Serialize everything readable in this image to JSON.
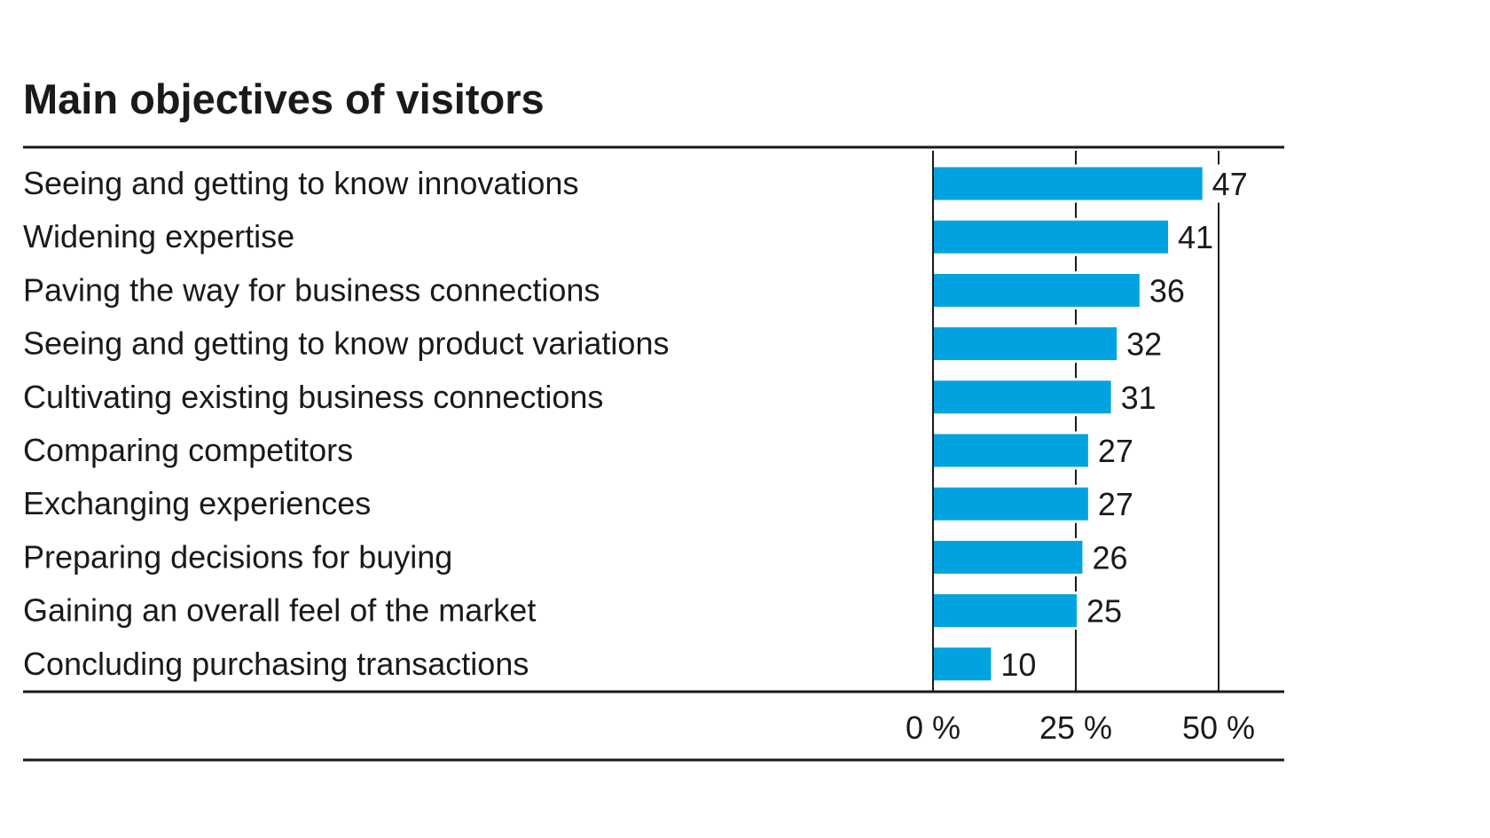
{
  "chart_data": {
    "type": "bar",
    "orientation": "horizontal",
    "title": "Main objectives of visitors",
    "categories": [
      "Seeing and getting to know innovations",
      "Widening expertise",
      "Paving the way for business connections",
      "Seeing and getting to know product variations",
      "Cultivating existing business connections",
      "Comparing competitors",
      "Exchanging experiences",
      "Preparing decisions for buying",
      "Gaining an overall feel of the market",
      "Concluding purchasing transactions"
    ],
    "values": [
      47,
      41,
      36,
      32,
      31,
      27,
      27,
      26,
      25,
      10
    ],
    "value_labels": [
      "47",
      "41",
      "36",
      "32",
      "31",
      "27",
      "27",
      "26",
      "25",
      "10"
    ],
    "xlim": [
      0,
      50
    ],
    "ticks": [
      0,
      25,
      50
    ],
    "tick_labels": [
      "0 %",
      "25 %",
      "50 %"
    ],
    "grid": true,
    "legend": "none",
    "bar_color": "#00a3e0",
    "text_color": "#1a1a1a",
    "rule_color": "#1a1a1a"
  }
}
